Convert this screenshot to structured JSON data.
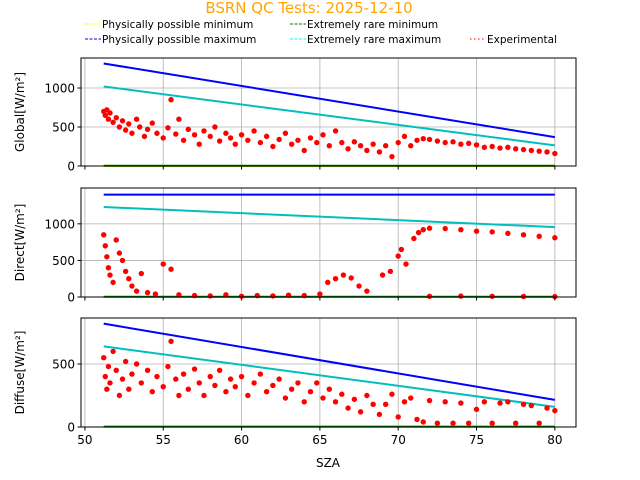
{
  "chart_data": {
    "type": "scatter",
    "title": "BSRN QC Tests: 2025-12-10",
    "title_color": "#ffa500",
    "legend": [
      {
        "label": "Physically possible minimum",
        "color": "#ffff00",
        "style": "dashed"
      },
      {
        "label": "Extremely rare minimum",
        "color": "#008000",
        "style": "dashed"
      },
      {
        "label": "Physically possible maximum",
        "color": "#0000ff",
        "style": "dashed"
      },
      {
        "label": "Extremely rare maximum",
        "color": "#00ffff",
        "style": "dashed"
      },
      {
        "label": "Experimental",
        "color": "#ff0000",
        "style": "dotted"
      }
    ],
    "legend_placement": "top",
    "xlabel": "SZA",
    "xlim": [
      49.75,
      81.35
    ],
    "xticks": [
      50,
      55,
      60,
      65,
      70,
      75,
      80
    ],
    "grid": true,
    "panels": [
      {
        "name": "global",
        "ylabel": "Global[W/m²]",
        "ylim": [
          0,
          1385
        ],
        "yticks": [
          0,
          500,
          1000
        ],
        "lines": {
          "phys_min": {
            "x": [
              51.2,
              80
            ],
            "y": [
              0,
              0
            ],
            "color": "#ffff00"
          },
          "rare_min": {
            "x": [
              51.2,
              80
            ],
            "y": [
              3,
              3
            ],
            "color": "#008000"
          },
          "phys_max": {
            "x": [
              51.2,
              80
            ],
            "y": [
              1315,
              370
            ],
            "color": "#0000ff"
          },
          "rare_max": {
            "x": [
              51.2,
              80
            ],
            "y": [
              1020,
              265
            ],
            "color": "#00bfbf"
          }
        },
        "points": [
          [
            51.2,
            700
          ],
          [
            51.3,
            650
          ],
          [
            51.4,
            720
          ],
          [
            51.5,
            600
          ],
          [
            51.6,
            680
          ],
          [
            51.8,
            560
          ],
          [
            52,
            620
          ],
          [
            52.2,
            500
          ],
          [
            52.4,
            580
          ],
          [
            52.6,
            460
          ],
          [
            52.8,
            540
          ],
          [
            53,
            420
          ],
          [
            53.3,
            600
          ],
          [
            53.5,
            500
          ],
          [
            53.8,
            380
          ],
          [
            54,
            470
          ],
          [
            54.3,
            550
          ],
          [
            54.6,
            420
          ],
          [
            55,
            360
          ],
          [
            55.3,
            490
          ],
          [
            55.5,
            850
          ],
          [
            55.8,
            410
          ],
          [
            56,
            600
          ],
          [
            56.3,
            330
          ],
          [
            56.6,
            470
          ],
          [
            57,
            400
          ],
          [
            57.3,
            280
          ],
          [
            57.6,
            450
          ],
          [
            58,
            380
          ],
          [
            58.3,
            500
          ],
          [
            58.6,
            320
          ],
          [
            59,
            420
          ],
          [
            59.3,
            360
          ],
          [
            59.6,
            280
          ],
          [
            60,
            400
          ],
          [
            60.4,
            330
          ],
          [
            60.8,
            450
          ],
          [
            61.2,
            300
          ],
          [
            61.6,
            380
          ],
          [
            62,
            250
          ],
          [
            62.4,
            340
          ],
          [
            62.8,
            420
          ],
          [
            63.2,
            280
          ],
          [
            63.6,
            330
          ],
          [
            64,
            200
          ],
          [
            64.4,
            360
          ],
          [
            64.8,
            300
          ],
          [
            65.2,
            400
          ],
          [
            65.6,
            260
          ],
          [
            66,
            450
          ],
          [
            66.4,
            300
          ],
          [
            66.8,
            220
          ],
          [
            67.2,
            310
          ],
          [
            67.6,
            260
          ],
          [
            68,
            200
          ],
          [
            68.4,
            280
          ],
          [
            68.8,
            180
          ],
          [
            69.2,
            260
          ],
          [
            69.6,
            120
          ],
          [
            70,
            300
          ],
          [
            70.4,
            380
          ],
          [
            70.8,
            260
          ],
          [
            71.2,
            330
          ],
          [
            71.6,
            350
          ],
          [
            72,
            340
          ],
          [
            72.5,
            320
          ],
          [
            73,
            300
          ],
          [
            73.5,
            310
          ],
          [
            74,
            280
          ],
          [
            74.5,
            290
          ],
          [
            75,
            270
          ],
          [
            75.5,
            240
          ],
          [
            76,
            250
          ],
          [
            76.5,
            230
          ],
          [
            77,
            240
          ],
          [
            77.5,
            220
          ],
          [
            78,
            210
          ],
          [
            78.5,
            200
          ],
          [
            79,
            190
          ],
          [
            79.5,
            180
          ],
          [
            80,
            160
          ]
        ]
      },
      {
        "name": "direct",
        "ylabel": "Direct[W/m²]",
        "ylim": [
          0,
          1490
        ],
        "yticks": [
          0,
          500,
          1000
        ],
        "lines": {
          "phys_min": {
            "x": [
              51.2,
              80
            ],
            "y": [
              0,
              0
            ],
            "color": "#ffff00"
          },
          "rare_min": {
            "x": [
              51.2,
              80
            ],
            "y": [
              3,
              3
            ],
            "color": "#008000"
          },
          "phys_max": {
            "x": [
              51.2,
              80
            ],
            "y": [
              1400,
              1400
            ],
            "color": "#0000ff"
          },
          "rare_max": {
            "x": [
              51.2,
              80
            ],
            "y": [
              1230,
              955
            ],
            "color": "#00bfbf"
          }
        },
        "points": [
          [
            51.2,
            850
          ],
          [
            51.3,
            700
          ],
          [
            51.4,
            550
          ],
          [
            51.5,
            400
          ],
          [
            51.6,
            300
          ],
          [
            51.8,
            200
          ],
          [
            52,
            780
          ],
          [
            52.2,
            600
          ],
          [
            52.4,
            500
          ],
          [
            52.6,
            350
          ],
          [
            52.8,
            250
          ],
          [
            53,
            150
          ],
          [
            53.3,
            80
          ],
          [
            53.6,
            320
          ],
          [
            54,
            60
          ],
          [
            54.5,
            40
          ],
          [
            55,
            450
          ],
          [
            55.5,
            380
          ],
          [
            56,
            30
          ],
          [
            57,
            20
          ],
          [
            58,
            15
          ],
          [
            59,
            30
          ],
          [
            60,
            10
          ],
          [
            61,
            20
          ],
          [
            62,
            15
          ],
          [
            63,
            25
          ],
          [
            64,
            20
          ],
          [
            65,
            40
          ],
          [
            65.5,
            200
          ],
          [
            66,
            250
          ],
          [
            66.5,
            300
          ],
          [
            67,
            260
          ],
          [
            67.5,
            150
          ],
          [
            68,
            80
          ],
          [
            69,
            300
          ],
          [
            69.5,
            350
          ],
          [
            70,
            560
          ],
          [
            70.2,
            650
          ],
          [
            70.5,
            450
          ],
          [
            71,
            800
          ],
          [
            71.3,
            880
          ],
          [
            71.6,
            920
          ],
          [
            72,
            940
          ],
          [
            73,
            935
          ],
          [
            74,
            920
          ],
          [
            75,
            900
          ],
          [
            76,
            890
          ],
          [
            77,
            870
          ],
          [
            78,
            850
          ],
          [
            79,
            830
          ],
          [
            80,
            810
          ],
          [
            72,
            10
          ],
          [
            74,
            12
          ],
          [
            76,
            10
          ],
          [
            78,
            8
          ],
          [
            80,
            5
          ]
        ]
      },
      {
        "name": "diffuse",
        "ylabel": "Diffuse[W/m²]",
        "ylim": [
          0,
          865
        ],
        "yticks": [
          0,
          500
        ],
        "lines": {
          "phys_min": {
            "x": [
              51.2,
              80
            ],
            "y": [
              0,
              0
            ],
            "color": "#ffff00"
          },
          "rare_min": {
            "x": [
              51.2,
              80
            ],
            "y": [
              3,
              3
            ],
            "color": "#008000"
          },
          "phys_max": {
            "x": [
              51.2,
              80
            ],
            "y": [
              820,
              215
            ],
            "color": "#0000ff"
          },
          "rare_max": {
            "x": [
              51.2,
              80
            ],
            "y": [
              640,
              160
            ],
            "color": "#00bfbf"
          }
        },
        "points": [
          [
            51.2,
            550
          ],
          [
            51.3,
            400
          ],
          [
            51.4,
            300
          ],
          [
            51.5,
            480
          ],
          [
            51.6,
            350
          ],
          [
            51.8,
            600
          ],
          [
            52,
            450
          ],
          [
            52.2,
            250
          ],
          [
            52.4,
            380
          ],
          [
            52.6,
            520
          ],
          [
            52.8,
            300
          ],
          [
            53,
            420
          ],
          [
            53.3,
            500
          ],
          [
            53.6,
            350
          ],
          [
            54,
            450
          ],
          [
            54.3,
            280
          ],
          [
            54.6,
            400
          ],
          [
            55,
            320
          ],
          [
            55.3,
            480
          ],
          [
            55.5,
            680
          ],
          [
            55.8,
            380
          ],
          [
            56,
            250
          ],
          [
            56.3,
            420
          ],
          [
            56.6,
            300
          ],
          [
            57,
            460
          ],
          [
            57.3,
            350
          ],
          [
            57.6,
            250
          ],
          [
            58,
            400
          ],
          [
            58.3,
            330
          ],
          [
            58.6,
            450
          ],
          [
            59,
            280
          ],
          [
            59.3,
            380
          ],
          [
            59.6,
            320
          ],
          [
            60,
            400
          ],
          [
            60.4,
            250
          ],
          [
            60.8,
            350
          ],
          [
            61.2,
            420
          ],
          [
            61.6,
            280
          ],
          [
            62,
            330
          ],
          [
            62.4,
            380
          ],
          [
            62.8,
            230
          ],
          [
            63.2,
            300
          ],
          [
            63.6,
            350
          ],
          [
            64,
            200
          ],
          [
            64.4,
            280
          ],
          [
            64.8,
            350
          ],
          [
            65.2,
            230
          ],
          [
            65.6,
            300
          ],
          [
            66,
            200
          ],
          [
            66.4,
            260
          ],
          [
            66.8,
            150
          ],
          [
            67.2,
            220
          ],
          [
            67.6,
            120
          ],
          [
            68,
            250
          ],
          [
            68.4,
            180
          ],
          [
            68.8,
            100
          ],
          [
            69.2,
            180
          ],
          [
            69.6,
            260
          ],
          [
            70,
            80
          ],
          [
            70.4,
            200
          ],
          [
            70.8,
            230
          ],
          [
            71.2,
            60
          ],
          [
            71.6,
            40
          ],
          [
            72,
            210
          ],
          [
            72.5,
            30
          ],
          [
            73,
            200
          ],
          [
            73.5,
            30
          ],
          [
            74,
            190
          ],
          [
            74.5,
            30
          ],
          [
            75,
            140
          ],
          [
            75.5,
            200
          ],
          [
            76,
            30
          ],
          [
            76.5,
            190
          ],
          [
            77,
            200
          ],
          [
            77.5,
            30
          ],
          [
            78,
            180
          ],
          [
            78.5,
            170
          ],
          [
            79,
            30
          ],
          [
            79.5,
            150
          ],
          [
            80,
            130
          ]
        ]
      }
    ]
  }
}
